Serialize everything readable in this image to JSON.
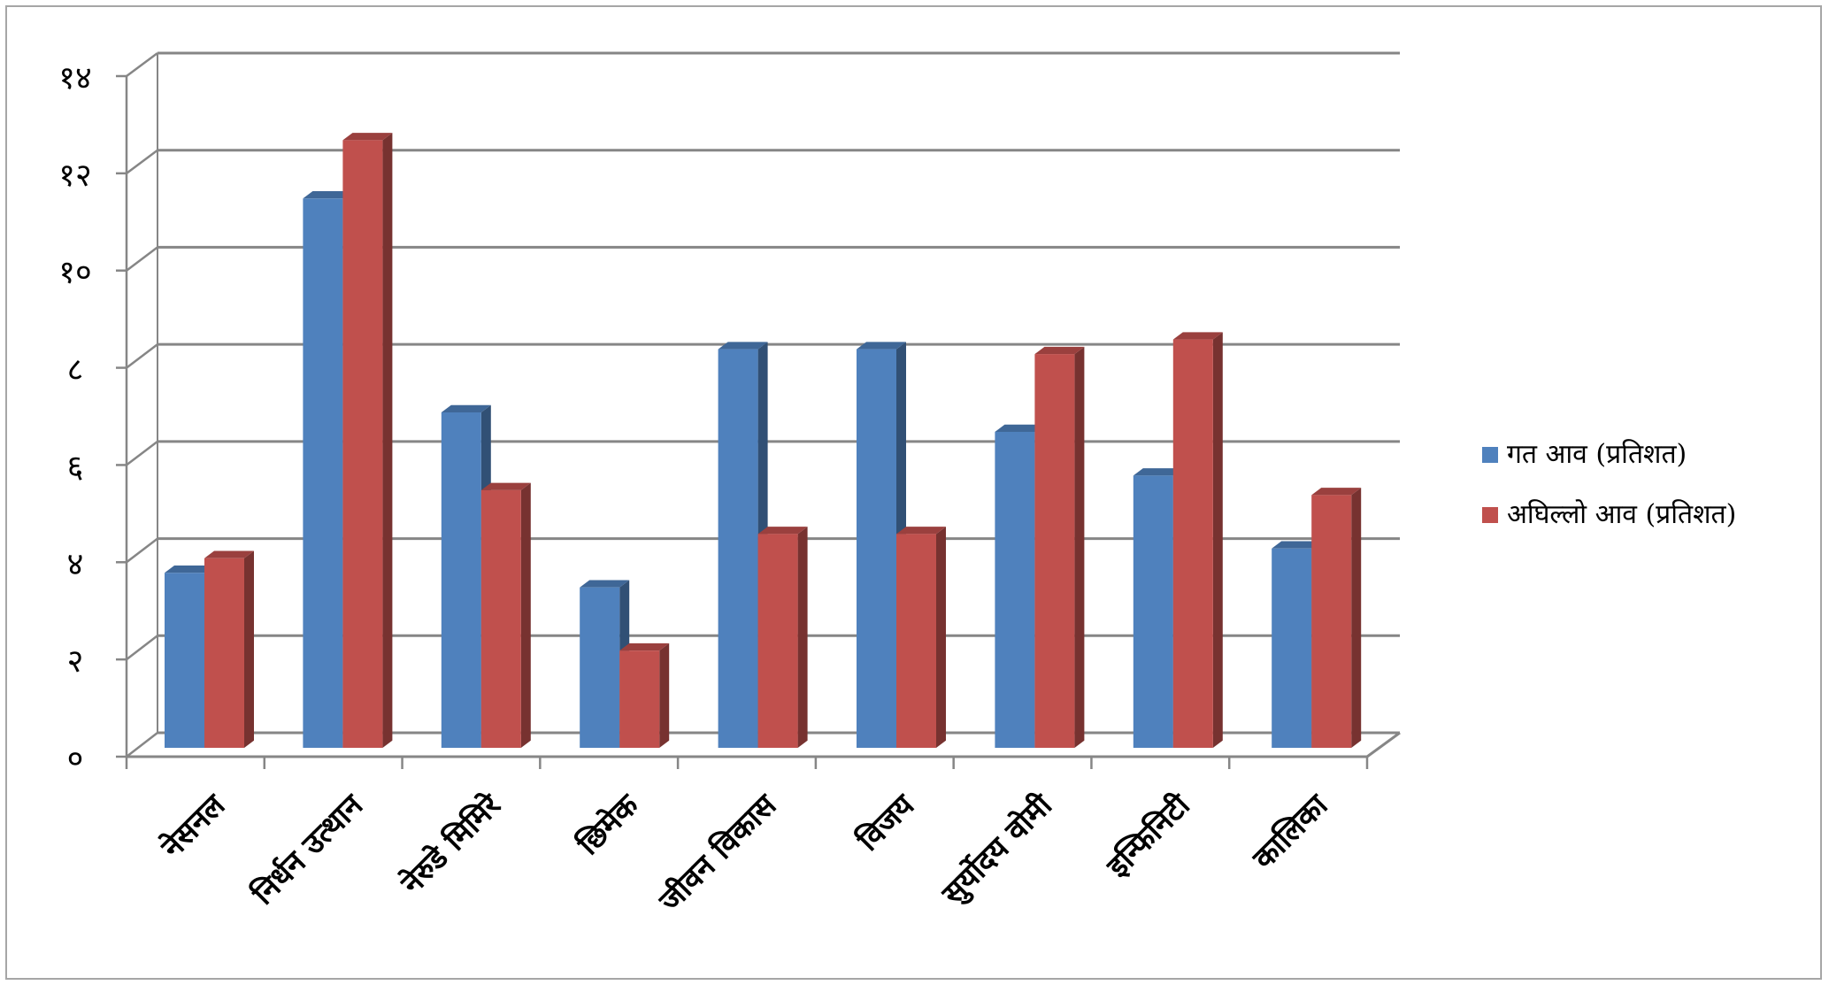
{
  "chart_data": {
    "type": "bar",
    "style": "3d-clustered-column",
    "categories": [
      "नेसनल",
      "निर्धन उत्थान",
      "नेरुडे मिमिरे",
      "छिमेक",
      "जीवन विकास",
      "विजय",
      "सुर्योदय वोमी",
      "इन्फिनिटी",
      "कालिका"
    ],
    "series": [
      {
        "name": "गत आव (प्रतिशत)",
        "color": "#4f81bd",
        "values": [
          3.6,
          11.3,
          6.9,
          3.3,
          8.2,
          8.2,
          6.5,
          5.6,
          4.1
        ]
      },
      {
        "name": "अघिल्लो आव (प्रतिशत)",
        "color": "#c0504d",
        "values": [
          3.9,
          12.5,
          5.3,
          2.0,
          4.4,
          4.4,
          8.1,
          8.4,
          5.2
        ]
      }
    ],
    "y_ticks": [
      "०",
      "२",
      "४",
      "६",
      "८",
      "१०",
      "१२",
      "१४"
    ],
    "ylim": [
      0,
      14
    ],
    "grid": true,
    "legend_position": "right"
  }
}
